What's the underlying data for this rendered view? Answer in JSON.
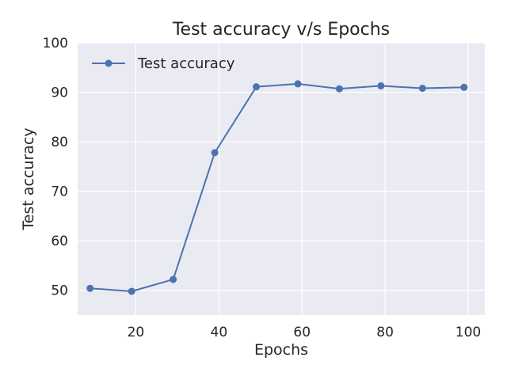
{
  "chart_data": {
    "type": "line",
    "title": "Test accuracy v/s Epochs",
    "xlabel": "Epochs",
    "ylabel": "Test accuracy",
    "xlim": [
      6,
      104
    ],
    "ylim": [
      45,
      100
    ],
    "xticks": [
      20,
      40,
      60,
      80,
      100
    ],
    "yticks": [
      50,
      60,
      70,
      80,
      90,
      100
    ],
    "grid": true,
    "legend_position": "top-left",
    "series": [
      {
        "name": "Test accuracy",
        "color": "#4c72b0",
        "marker": "circle",
        "x": [
          9,
          19,
          29,
          39,
          49,
          59,
          69,
          79,
          89,
          99
        ],
        "y": [
          50.4,
          49.8,
          52.2,
          77.8,
          91.1,
          91.7,
          90.7,
          91.3,
          90.8,
          91.0
        ]
      }
    ]
  },
  "colors": {
    "plot_background": "#eaeaf2",
    "grid": "#ffffff"
  }
}
